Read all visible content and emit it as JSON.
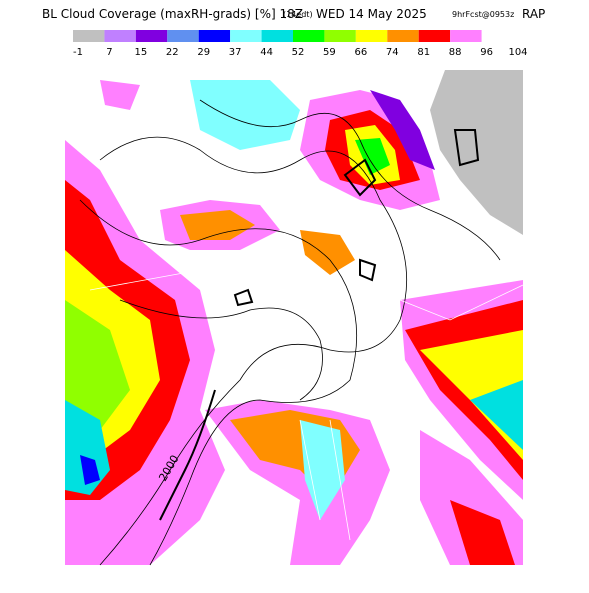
{
  "header": {
    "title": "BL Cloud Coverage (maxRH-grads) [%] 18Z",
    "local_time": "(14edt)",
    "date": "WED 14 May 2025",
    "forecast": "9hrFcst@0953z",
    "model": "RAP"
  },
  "colorbar": {
    "colors": [
      "#c0c0c0",
      "#c080ff",
      "#8000e0",
      "#6090f0",
      "#0000ff",
      "#80ffff",
      "#00e0e0",
      "#00ff00",
      "#90ff00",
      "#ffff00",
      "#ff9000",
      "#ff0000",
      "#ff80ff"
    ],
    "labels": [
      -1,
      7,
      15,
      22,
      29,
      37,
      44,
      52,
      59,
      66,
      74,
      81,
      88,
      96,
      104
    ]
  },
  "map": {
    "contour_label": "2000"
  }
}
